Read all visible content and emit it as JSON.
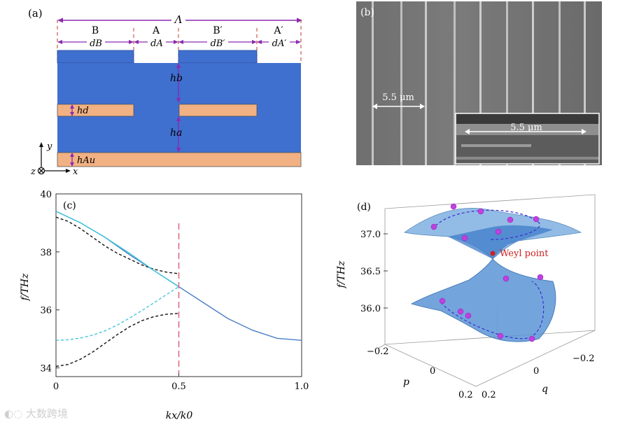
{
  "panel_a": {
    "label": "(a)",
    "period_symbol": "Λ",
    "segments": [
      "B",
      "A",
      "B′",
      "A′"
    ],
    "widths": [
      "dB",
      "dA",
      "dB′",
      "dA′"
    ],
    "heights": [
      "hb",
      "hd",
      "ha",
      "hAu"
    ],
    "axes": {
      "y": "y",
      "x": "x",
      "z": "z"
    },
    "colors": {
      "dielectric": "#3f6fcf",
      "gold": "#f2b183",
      "arrow": "#8a2bb0",
      "dash": "#c0392b"
    }
  },
  "panel_b": {
    "label": "(b)",
    "scale_main": "5.5 μm",
    "scale_inset": "5.5 μm"
  },
  "panel_c": {
    "label": "(c)",
    "ylabel": "f/THz",
    "xlabel": "kx/k0",
    "xticks": [
      "0",
      "0.5",
      "1.0"
    ],
    "yticks": [
      "34",
      "36",
      "38",
      "40"
    ],
    "chart_data": {
      "type": "line",
      "xlim": [
        0,
        1.0
      ],
      "ylim": [
        33.7,
        40.0
      ],
      "series": [
        {
          "name": "solid-blue",
          "style": "solid",
          "color": "#4a7fc9",
          "x": [
            0,
            0.1,
            0.2,
            0.3,
            0.4,
            0.5,
            0.6,
            0.7,
            0.8,
            0.9,
            1.0
          ],
          "y": [
            39.4,
            39.0,
            38.5,
            37.9,
            37.35,
            36.8,
            36.25,
            35.7,
            35.3,
            35.02,
            34.95
          ]
        },
        {
          "name": "black-upper",
          "style": "dashed",
          "color": "#111111",
          "x": [
            0,
            0.05,
            0.1,
            0.15,
            0.2,
            0.25,
            0.3,
            0.35,
            0.4,
            0.45,
            0.5
          ],
          "y": [
            39.2,
            39.05,
            38.8,
            38.5,
            38.2,
            37.95,
            37.75,
            37.55,
            37.4,
            37.3,
            37.25
          ]
        },
        {
          "name": "cyan-upper",
          "style": "solid",
          "color": "#3fc7d9",
          "x": [
            0,
            0.1,
            0.2,
            0.3,
            0.4,
            0.5
          ],
          "y": [
            39.4,
            39.0,
            38.5,
            37.95,
            37.35,
            36.8
          ]
        },
        {
          "name": "cyan-lower",
          "style": "dashed",
          "color": "#3fc7d9",
          "x": [
            0,
            0.05,
            0.1,
            0.15,
            0.2,
            0.25,
            0.3,
            0.35,
            0.4,
            0.45,
            0.5
          ],
          "y": [
            34.95,
            34.97,
            35.03,
            35.13,
            35.28,
            35.48,
            35.72,
            35.98,
            36.25,
            36.53,
            36.8
          ]
        },
        {
          "name": "black-lower",
          "style": "dashed",
          "color": "#111111",
          "x": [
            0,
            0.05,
            0.1,
            0.15,
            0.2,
            0.25,
            0.3,
            0.35,
            0.4,
            0.45,
            0.5
          ],
          "y": [
            34.05,
            34.12,
            34.3,
            34.55,
            34.85,
            35.15,
            35.42,
            35.63,
            35.77,
            35.85,
            35.88
          ]
        }
      ],
      "vline": {
        "x": 0.5,
        "color": "#e0607e"
      }
    }
  },
  "panel_d": {
    "label": "(d)",
    "zlabel": "f/THz",
    "zticks": [
      "37.0",
      "36.5",
      "36.0"
    ],
    "p_label": "p",
    "q_label": "q",
    "p_ticks": [
      "−0.2",
      "0",
      "0.2"
    ],
    "q_ticks": [
      "−0.2",
      "0",
      "0.2"
    ],
    "annotation": "Weyl point",
    "colors": {
      "surface": "#7fb0e0",
      "dot": "#c040e0",
      "weyl": "#cc2222"
    }
  },
  "watermark": "大数跨境"
}
